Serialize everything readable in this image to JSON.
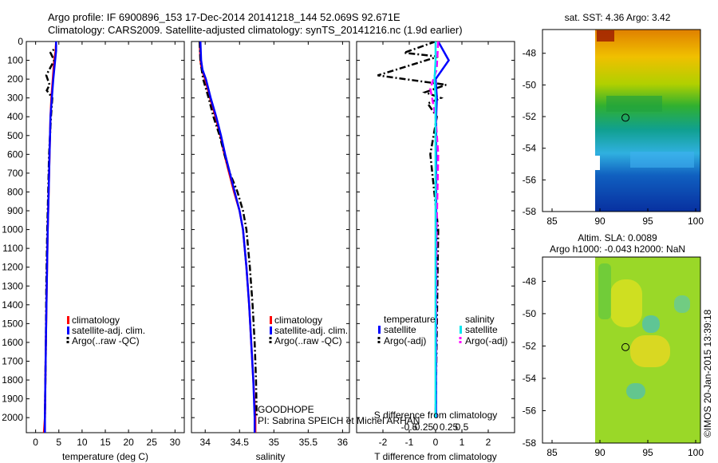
{
  "header": {
    "line1": "Argo profile: IF 6900896_153 17-Dec-2014 20141218_144 52.069S 92.671E",
    "line2": "Climatology: CARS2009. Satellite-adjusted climatology: synTS_20141216.nc (1.9d earlier)"
  },
  "colors": {
    "clim": "#ff0000",
    "sat": "#0000ff",
    "argo": "#000000",
    "sat_s": "#00e5ee",
    "argo_s": "#ff00ff"
  },
  "chart_data": [
    {
      "type": "line",
      "title": "",
      "xlabel": "temperature (deg C)",
      "ylabel": "",
      "xlim": [
        -2,
        32
      ],
      "ylim": [
        2080,
        0
      ],
      "x_ticks": [
        0,
        5,
        10,
        15,
        20,
        25,
        30
      ],
      "y_ticks": [
        0,
        100,
        200,
        300,
        400,
        500,
        600,
        700,
        800,
        900,
        1000,
        1100,
        1200,
        1300,
        1400,
        1500,
        1600,
        1700,
        1800,
        1900,
        2000
      ],
      "series": [
        {
          "name": "climatology",
          "style": "clim",
          "points": [
            [
              4.4,
              0
            ],
            [
              4.3,
              50
            ],
            [
              4.0,
              100
            ],
            [
              3.7,
              200
            ],
            [
              3.4,
              300
            ],
            [
              3.2,
              400
            ],
            [
              3.0,
              600
            ],
            [
              2.8,
              800
            ],
            [
              2.6,
              1000
            ],
            [
              2.4,
              1300
            ],
            [
              2.2,
              1600
            ],
            [
              2.0,
              2000
            ],
            [
              1.8,
              2080
            ]
          ]
        },
        {
          "name": "satellite-adj. clim.",
          "style": "sat",
          "points": [
            [
              4.4,
              0
            ],
            [
              4.4,
              50
            ],
            [
              4.2,
              100
            ],
            [
              3.8,
              200
            ],
            [
              3.5,
              300
            ],
            [
              3.2,
              400
            ],
            [
              3.0,
              600
            ],
            [
              2.8,
              800
            ],
            [
              2.6,
              1000
            ],
            [
              2.4,
              1300
            ],
            [
              2.2,
              1600
            ],
            [
              2.0,
              2000
            ],
            [
              2.0,
              2080
            ]
          ]
        },
        {
          "name": "Argo(..raw -QC)",
          "style": "argo",
          "points": [
            [
              4.4,
              0
            ],
            [
              4.4,
              30
            ],
            [
              3.2,
              60
            ],
            [
              4.0,
              100
            ],
            [
              2.3,
              180
            ],
            [
              3.0,
              230
            ],
            [
              2.4,
              260
            ],
            [
              3.6,
              300
            ],
            [
              3.3,
              400
            ],
            [
              3.1,
              500
            ],
            [
              2.9,
              600
            ],
            [
              2.7,
              800
            ],
            [
              2.5,
              1000
            ],
            [
              2.3,
              1300
            ],
            [
              2.2,
              1600
            ],
            [
              2.0,
              2000
            ]
          ]
        }
      ],
      "legend": {
        "position": "middle",
        "entries": [
          "climatology",
          "satellite-adj. clim.",
          "Argo(..raw -QC)"
        ]
      }
    },
    {
      "type": "line",
      "title": "",
      "xlabel": "salinity",
      "ylabel": "",
      "xlim": [
        33.8,
        36.1
      ],
      "ylim": [
        2080,
        0
      ],
      "x_ticks": [
        34,
        34.5,
        35,
        35.5,
        36
      ],
      "series": [
        {
          "name": "climatology",
          "style": "clim",
          "points": [
            [
              33.92,
              0
            ],
            [
              33.93,
              100
            ],
            [
              33.95,
              150
            ],
            [
              34.0,
              200
            ],
            [
              34.07,
              300
            ],
            [
              34.15,
              400
            ],
            [
              34.22,
              500
            ],
            [
              34.28,
              600
            ],
            [
              34.35,
              700
            ],
            [
              34.42,
              800
            ],
            [
              34.5,
              900
            ],
            [
              34.55,
              1000
            ],
            [
              34.6,
              1200
            ],
            [
              34.64,
              1400
            ],
            [
              34.67,
              1600
            ],
            [
              34.7,
              1800
            ],
            [
              34.73,
              2000
            ],
            [
              34.73,
              2080
            ]
          ]
        },
        {
          "name": "satellite-adj. clim.",
          "style": "sat",
          "points": [
            [
              33.93,
              0
            ],
            [
              33.94,
              100
            ],
            [
              33.96,
              150
            ],
            [
              34.01,
              200
            ],
            [
              34.08,
              300
            ],
            [
              34.16,
              400
            ],
            [
              34.23,
              500
            ],
            [
              34.29,
              600
            ],
            [
              34.36,
              700
            ],
            [
              34.43,
              800
            ],
            [
              34.5,
              900
            ],
            [
              34.55,
              1000
            ],
            [
              34.6,
              1200
            ],
            [
              34.64,
              1400
            ],
            [
              34.67,
              1600
            ],
            [
              34.7,
              1800
            ],
            [
              34.72,
              2000
            ],
            [
              34.72,
              2080
            ]
          ]
        },
        {
          "name": "Argo(..raw -QC)",
          "style": "argo",
          "points": [
            [
              33.92,
              0
            ],
            [
              33.93,
              100
            ],
            [
              33.97,
              200
            ],
            [
              34.05,
              300
            ],
            [
              34.12,
              400
            ],
            [
              34.21,
              500
            ],
            [
              34.28,
              600
            ],
            [
              34.36,
              700
            ],
            [
              34.47,
              800
            ],
            [
              34.55,
              900
            ],
            [
              34.6,
              1000
            ],
            [
              34.65,
              1200
            ],
            [
              34.69,
              1400
            ],
            [
              34.72,
              1600
            ],
            [
              34.74,
              1800
            ],
            [
              34.75,
              2000
            ]
          ]
        }
      ],
      "legend": {
        "position": "middle",
        "entries": [
          "climatology",
          "satellite-adj. clim.",
          "Argo(..raw -QC)"
        ]
      },
      "annotations": [
        "GOODHOPE",
        "PI: Sabrina SPEICH et Michel ARHAN"
      ]
    },
    {
      "type": "line",
      "title": "",
      "xlabel": "T difference from climatology",
      "xlabel_top": "S difference from climatology",
      "ylabel": "",
      "xlim": [
        -3,
        3
      ],
      "ylim": [
        2080,
        0
      ],
      "x_ticks_T": [
        -2,
        -1,
        0,
        1,
        2
      ],
      "x_ticks_S": [
        -0.5,
        -0.25,
        0,
        0.25,
        0.5
      ],
      "series": [
        {
          "name": "temperature satellite",
          "style": "sat",
          "points": [
            [
              0.1,
              0
            ],
            [
              0.5,
              100
            ],
            [
              0,
              200
            ],
            [
              0.05,
              300
            ],
            [
              0.02,
              400
            ],
            [
              0.02,
              2000
            ]
          ]
        },
        {
          "name": "temperature Argo(-adj)",
          "style": "argo",
          "points": [
            [
              0,
              0
            ],
            [
              -1.2,
              60
            ],
            [
              0.1,
              80
            ],
            [
              -1.5,
              150
            ],
            [
              -2.2,
              180
            ],
            [
              0.4,
              230
            ],
            [
              -0.4,
              270
            ],
            [
              0.2,
              300
            ],
            [
              -0.3,
              330
            ],
            [
              0.05,
              400
            ],
            [
              -0.2,
              600
            ],
            [
              0.1,
              1000
            ],
            [
              0,
              2000
            ]
          ]
        },
        {
          "name": "salinity satellite",
          "style": "sat_s",
          "points": [
            [
              0,
              0
            ],
            [
              0,
              100
            ],
            [
              -0.02,
              200
            ],
            [
              0,
              300
            ],
            [
              0,
              1000
            ],
            [
              0,
              2000
            ]
          ]
        },
        {
          "name": "salinity Argo(-adj)",
          "style": "argo_s",
          "points": [
            [
              0.05,
              0
            ],
            [
              0.02,
              150
            ],
            [
              -0.1,
              250
            ],
            [
              0,
              400
            ],
            [
              0.05,
              600
            ],
            [
              0.02,
              1000
            ],
            [
              0,
              2000
            ]
          ]
        }
      ],
      "legend": {
        "position": "middle",
        "groups": [
          "temperature",
          "salinity"
        ],
        "entries_T": [
          "satellite",
          "Argo(-adj)"
        ],
        "entries_S": [
          "satellite",
          "Argo(-adj)"
        ]
      }
    },
    {
      "type": "heatmap",
      "title": "sat. SST: 4.36 Argo: 3.42",
      "xlim": [
        84,
        100.5
      ],
      "ylim": [
        -58,
        -46.5
      ],
      "x_ticks": [
        85,
        90,
        95,
        100
      ],
      "y_ticks": [
        -48,
        -50,
        -52,
        -54,
        -56,
        -58
      ],
      "marker": [
        92.67,
        -52.07
      ]
    },
    {
      "type": "heatmap",
      "title": "Altim. SLA: 0.0089",
      "subtitle": "Argo h1000: -0.043 h2000: NaN",
      "xlim": [
        84,
        100.5
      ],
      "ylim": [
        -58,
        -46.5
      ],
      "x_ticks": [
        85,
        90,
        95,
        100
      ],
      "y_ticks": [
        -48,
        -50,
        -52,
        -54,
        -56,
        -58
      ],
      "marker": [
        92.67,
        -52.07
      ]
    }
  ],
  "credit": "©IMOS 20-Jan-2015 13:39:18"
}
